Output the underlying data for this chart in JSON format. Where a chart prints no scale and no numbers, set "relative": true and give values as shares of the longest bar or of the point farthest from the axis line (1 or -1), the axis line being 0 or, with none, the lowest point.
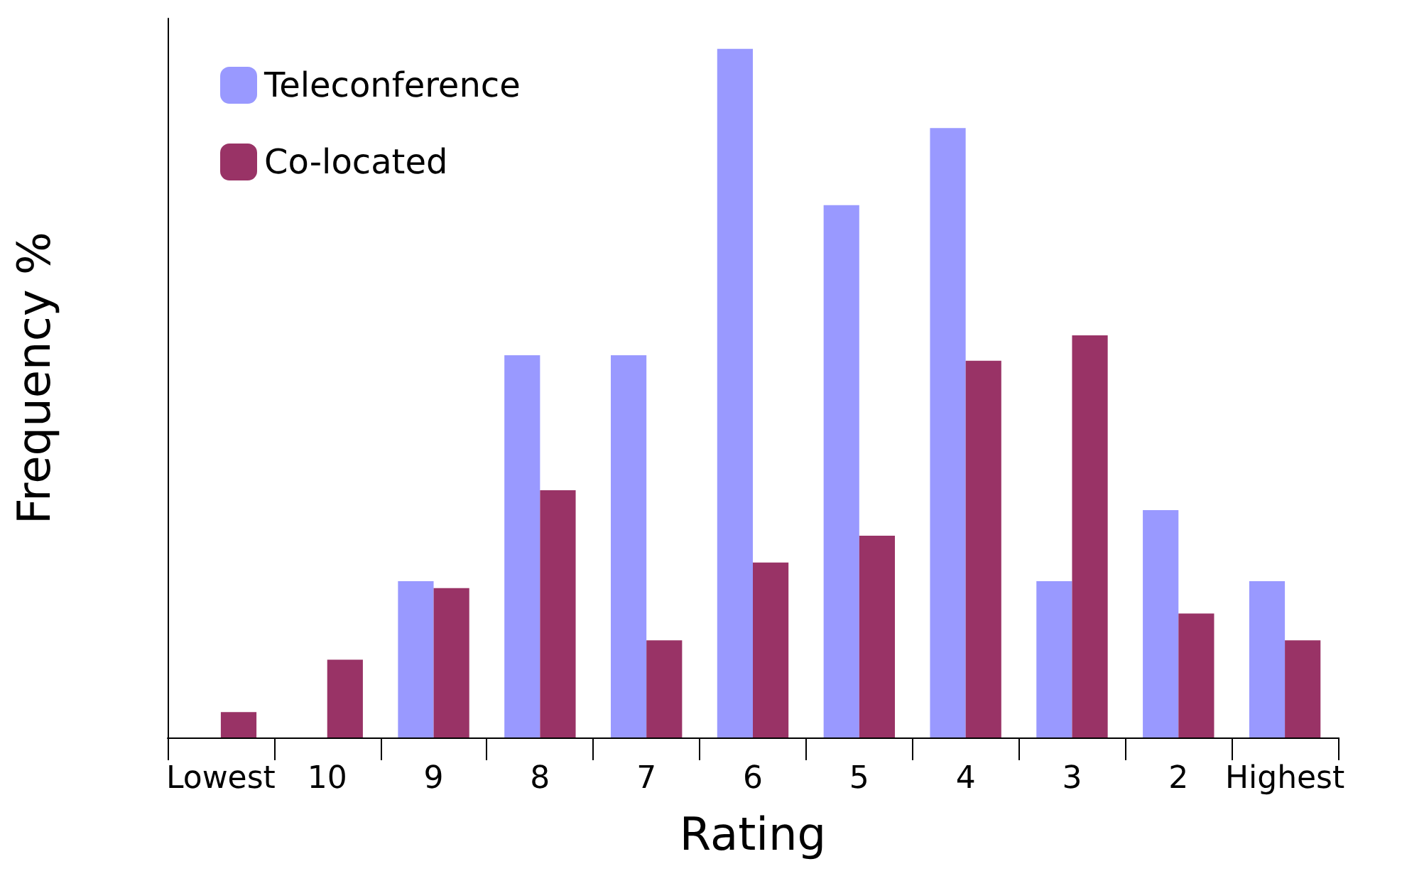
{
  "chart_data": {
    "type": "bar",
    "relative": true,
    "xlabel": "Rating",
    "ylabel": "Frequency %",
    "legend": "top left",
    "grid": false,
    "categories": [
      "Lowest",
      "10",
      "9",
      "8",
      "7",
      "6",
      "5",
      "4",
      "3",
      "2",
      "Highest"
    ],
    "series": [
      {
        "name": "Teleconference",
        "color": "#9999ff",
        "values": [
          0,
          0,
          0.227,
          0.555,
          0.555,
          1,
          0.773,
          0.885,
          0.227,
          0.33,
          0.227
        ]
      },
      {
        "name": "Co-located",
        "color": "#993366",
        "values": [
          0.037,
          0.113,
          0.217,
          0.359,
          0.141,
          0.254,
          0.293,
          0.547,
          0.584,
          0.18,
          0.141
        ]
      }
    ]
  }
}
